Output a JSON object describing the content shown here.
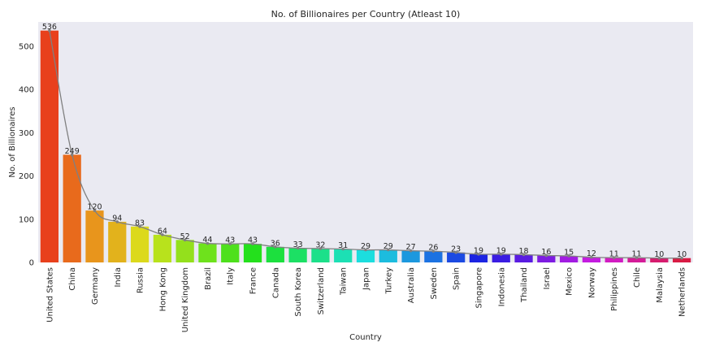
{
  "chart_data": {
    "type": "bar",
    "title": "No. of Billionaires per Country (Atleast 10)",
    "xlabel": "Country",
    "ylabel": "No. of Billionaires",
    "ylim": [
      0,
      556
    ],
    "yticks": [
      0,
      100,
      200,
      300,
      400,
      500
    ],
    "grid": false,
    "overlay_line": true,
    "categories": [
      "United States",
      "China",
      "Germany",
      "India",
      "Russia",
      "Hong Kong",
      "United Kingdom",
      "Brazil",
      "Italy",
      "France",
      "Canada",
      "South Korea",
      "Switzerland",
      "Taiwan",
      "Japan",
      "Turkey",
      "Australia",
      "Sweden",
      "Spain",
      "Singapore",
      "Indonesia",
      "Thailand",
      "Israel",
      "Mexico",
      "Norway",
      "Philippines",
      "Chile",
      "Malaysia",
      "Netherlands"
    ],
    "values": [
      536,
      249,
      120,
      94,
      83,
      64,
      52,
      44,
      43,
      43,
      36,
      33,
      32,
      31,
      29,
      29,
      27,
      26,
      23,
      19,
      19,
      18,
      16,
      15,
      12,
      11,
      11,
      10,
      10
    ],
    "colors": {
      "plot_background": "#eaeaf2",
      "line": "#808080",
      "bars": [
        "#e8401c",
        "#e86a1c",
        "#e8951c",
        "#e2b21c",
        "#dcd91c",
        "#b8e21c",
        "#94e01c",
        "#6ee21c",
        "#4ee01c",
        "#24e01c",
        "#1ce03e",
        "#1ce064",
        "#1ce08a",
        "#1ce0b4",
        "#1cdede",
        "#1cbcde",
        "#1c98de",
        "#1c72e2",
        "#1c4ae2",
        "#1c24e2",
        "#3a1ce2",
        "#5a1ce2",
        "#7e1ce2",
        "#a21ce2",
        "#c41ce0",
        "#d21cc2",
        "#d41c98",
        "#d61c6e",
        "#d81c44"
      ]
    }
  }
}
